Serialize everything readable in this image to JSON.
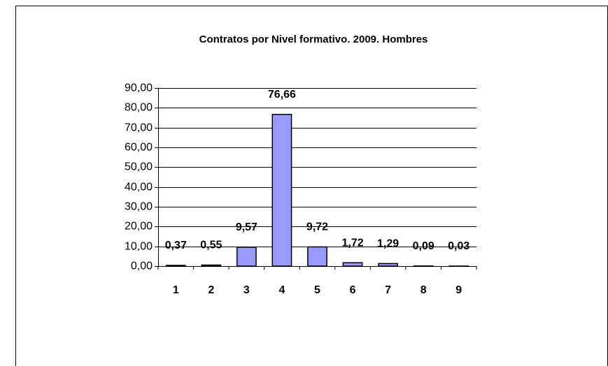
{
  "chart_data": {
    "type": "bar",
    "title": "Contratos por Nivel formativo. 2009. Hombres",
    "categories": [
      "1",
      "2",
      "3",
      "4",
      "5",
      "6",
      "7",
      "8",
      "9"
    ],
    "values": [
      0.37,
      0.55,
      9.57,
      76.66,
      9.72,
      1.72,
      1.29,
      0.09,
      0.03
    ],
    "value_labels": [
      "0,37",
      "0,55",
      "9,57",
      "76,66",
      "9,72",
      "1,72",
      "1,29",
      "0,09",
      "0,03"
    ],
    "color": "#9999ff",
    "ylim": [
      0,
      90
    ],
    "yticks": [
      {
        "value": 0,
        "label": "0,00"
      },
      {
        "value": 10,
        "label": "10,00"
      },
      {
        "value": 20,
        "label": "20,00"
      },
      {
        "value": 30,
        "label": "30,00"
      },
      {
        "value": 40,
        "label": "40,00"
      },
      {
        "value": 50,
        "label": "50,00"
      },
      {
        "value": 60,
        "label": "60,00"
      },
      {
        "value": 70,
        "label": "70,00"
      },
      {
        "value": 80,
        "label": "80,00"
      },
      {
        "value": 90,
        "label": "90,00"
      }
    ],
    "grid": true
  }
}
